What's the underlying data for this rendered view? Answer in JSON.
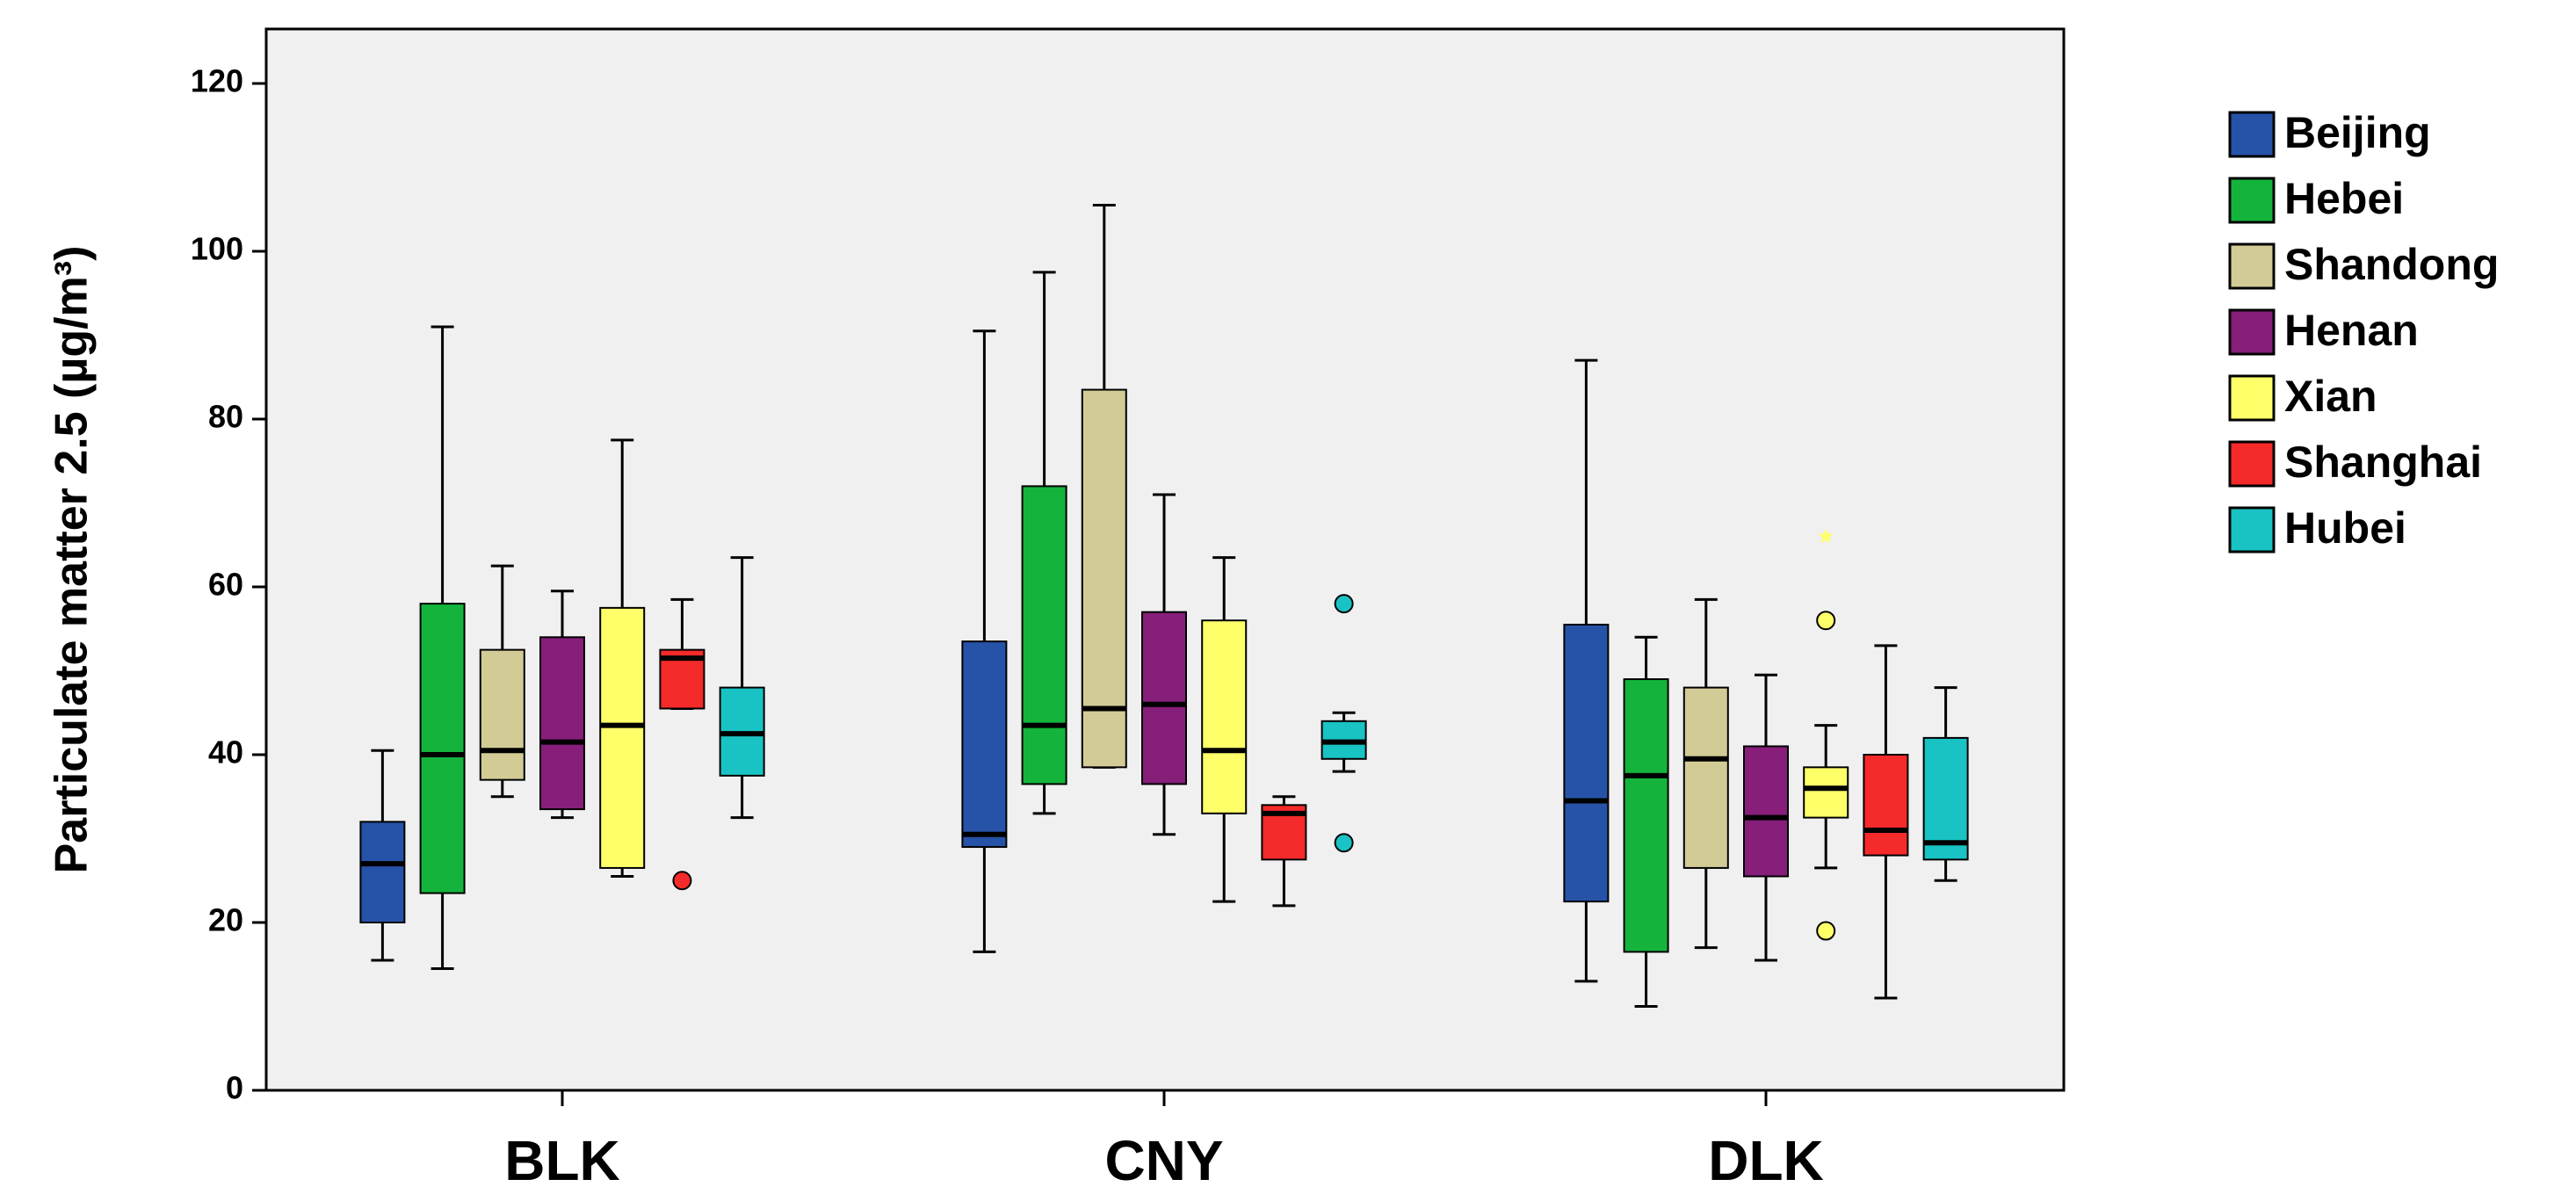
{
  "chart_data": {
    "type": "boxplot",
    "title": "",
    "xlabel": "",
    "ylabel": "Particulate matter 2.5 (µg/m³)",
    "ylim": [
      0,
      125
    ],
    "yticks": [
      0,
      20,
      40,
      60,
      80,
      100,
      120
    ],
    "categories": [
      "BLK",
      "CNY",
      "DLK"
    ],
    "grid": false,
    "legend_position": "right",
    "series": [
      {
        "name": "Beijing",
        "color": "#2653A8",
        "boxes": [
          {
            "min": 15.5,
            "q1": 20,
            "median": 27,
            "q3": 32,
            "max": 40.5,
            "outliers": []
          },
          {
            "min": 16.5,
            "q1": 29,
            "median": 30.5,
            "q3": 53.5,
            "max": 90.5,
            "outliers": []
          },
          {
            "min": 13,
            "q1": 22.5,
            "median": 34.5,
            "q3": 55.5,
            "max": 87,
            "outliers": []
          }
        ]
      },
      {
        "name": "Hebei",
        "color": "#14B43C",
        "boxes": [
          {
            "min": 14.5,
            "q1": 23.5,
            "median": 40,
            "q3": 58,
            "max": 91,
            "outliers": []
          },
          {
            "min": 33,
            "q1": 36.5,
            "median": 43.5,
            "q3": 72,
            "max": 97.5,
            "outliers": []
          },
          {
            "min": 10,
            "q1": 16.5,
            "median": 37.5,
            "q3": 49,
            "max": 54,
            "outliers": []
          }
        ]
      },
      {
        "name": "Shandong",
        "color": "#D2CB96",
        "boxes": [
          {
            "min": 35,
            "q1": 37,
            "median": 40.5,
            "q3": 52.5,
            "max": 62.5,
            "outliers": []
          },
          {
            "min": 38.5,
            "q1": 38.5,
            "median": 45.5,
            "q3": 83.5,
            "max": 105.5,
            "outliers": []
          },
          {
            "min": 17,
            "q1": 26.5,
            "median": 39.5,
            "q3": 48,
            "max": 58.5,
            "outliers": []
          }
        ]
      },
      {
        "name": "Henan",
        "color": "#861E7A",
        "boxes": [
          {
            "min": 32.5,
            "q1": 33.5,
            "median": 41.5,
            "q3": 54,
            "max": 59.5,
            "outliers": []
          },
          {
            "min": 30.5,
            "q1": 36.5,
            "median": 46,
            "q3": 57,
            "max": 71,
            "outliers": []
          },
          {
            "min": 15.5,
            "q1": 25.5,
            "median": 32.5,
            "q3": 41,
            "max": 49.5,
            "outliers": []
          }
        ]
      },
      {
        "name": "Xian",
        "color": "#FFFF6A",
        "boxes": [
          {
            "min": 25.5,
            "q1": 26.5,
            "median": 43.5,
            "q3": 57.5,
            "max": 77.5,
            "outliers": []
          },
          {
            "min": 22.5,
            "q1": 33,
            "median": 40.5,
            "q3": 56,
            "max": 63.5,
            "outliers": []
          },
          {
            "min": 26.5,
            "q1": 32.5,
            "median": 36,
            "q3": 38.5,
            "max": 43.5,
            "outliers": [
              19,
              56
            ],
            "extremes": [
              66
            ]
          }
        ]
      },
      {
        "name": "Shanghai",
        "color": "#F52A2A",
        "boxes": [
          {
            "min": 45.5,
            "q1": 45.5,
            "median": 51.5,
            "q3": 52.5,
            "max": 58.5,
            "outliers": [
              25
            ]
          },
          {
            "min": 22,
            "q1": 27.5,
            "median": 33,
            "q3": 34,
            "max": 35,
            "outliers": []
          },
          {
            "min": 11,
            "q1": 28,
            "median": 31,
            "q3": 40,
            "max": 53,
            "outliers": []
          }
        ]
      },
      {
        "name": "Hubei",
        "color": "#19C3C4",
        "boxes": [
          {
            "min": 32.5,
            "q1": 37.5,
            "median": 42.5,
            "q3": 48,
            "max": 63.5,
            "outliers": []
          },
          {
            "min": 38,
            "q1": 39.5,
            "median": 41.5,
            "q3": 44,
            "max": 45,
            "outliers": [
              29.5,
              58
            ]
          },
          {
            "min": 25,
            "q1": 27.5,
            "median": 29.5,
            "q3": 42,
            "max": 48,
            "outliers": []
          }
        ]
      }
    ]
  }
}
